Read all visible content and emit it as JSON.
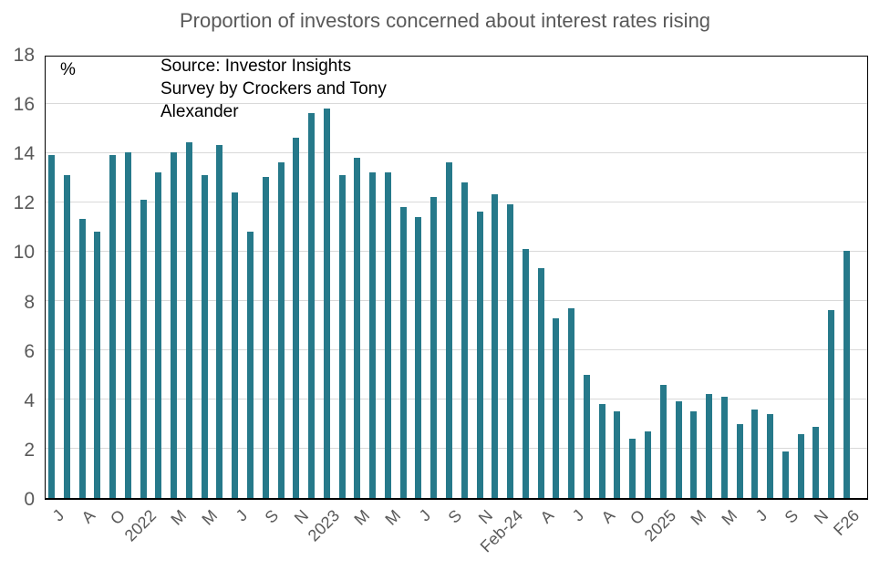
{
  "header": {
    "title": "Proportion of investors concerned about interest rates rising"
  },
  "chart_data": {
    "type": "bar",
    "title": "Proportion of investors concerned about interest rates rising",
    "ylabel_symbol": "%",
    "source_lines": [
      "Source: Investor Insights",
      "Survey by Crockers and Tony",
      "Alexander"
    ],
    "ylim": [
      0,
      18
    ],
    "ytick_step": 2,
    "yticks": [
      0,
      2,
      4,
      6,
      8,
      10,
      12,
      14,
      16,
      18
    ],
    "grid": true,
    "legend": "none",
    "x_tick_labels": [
      "J",
      "A",
      "O",
      "2022",
      "M",
      "M",
      "J",
      "S",
      "N",
      "2023",
      "M",
      "M",
      "J",
      "S",
      "N",
      "Feb-24",
      "A",
      "J",
      "A",
      "O",
      "2025",
      "M",
      "M",
      "J",
      "S",
      "N",
      "F26"
    ],
    "label_every_n_bars": 2,
    "n_bars": 53,
    "values": [
      13.9,
      13.1,
      11.3,
      10.8,
      13.9,
      14.0,
      12.1,
      13.2,
      14.0,
      14.4,
      13.1,
      14.3,
      12.4,
      10.8,
      13.0,
      13.6,
      14.6,
      15.6,
      15.8,
      13.1,
      13.8,
      13.2,
      13.2,
      11.8,
      11.4,
      12.2,
      13.6,
      12.8,
      11.6,
      12.3,
      11.9,
      10.1,
      9.3,
      7.3,
      7.7,
      5.0,
      3.8,
      3.5,
      2.4,
      2.7,
      4.6,
      3.9,
      3.5,
      4.2,
      4.1,
      3.0,
      3.6,
      3.4,
      1.9,
      2.6,
      2.9,
      7.6,
      10.0
    ],
    "colors": {
      "bar": "#26798a",
      "gridline": "#d9d9d9",
      "axis_border": "#000000",
      "title_text": "#595959",
      "tick_text": "#595959",
      "annotation_text": "#000000"
    }
  }
}
